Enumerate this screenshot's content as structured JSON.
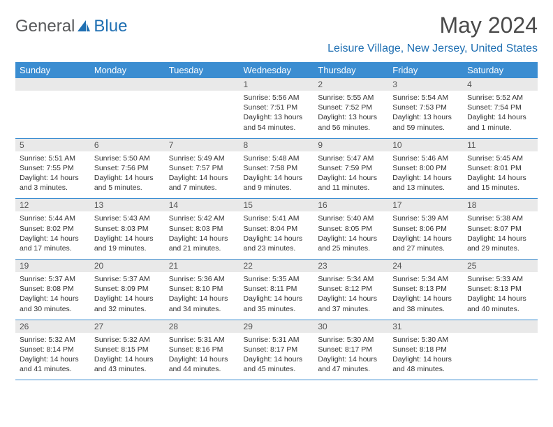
{
  "brand": {
    "text_gray": "General",
    "text_blue": "Blue",
    "color_gray": "#58595b",
    "color_blue": "#1f6fb2"
  },
  "title": "May 2024",
  "location": "Leisure Village, New Jersey, United States",
  "colors": {
    "header_bg": "#3b8dd1",
    "header_text": "#ffffff",
    "daynum_bg": "#e9e9e9",
    "border": "#3b8dd1"
  },
  "weekdays": [
    "Sunday",
    "Monday",
    "Tuesday",
    "Wednesday",
    "Thursday",
    "Friday",
    "Saturday"
  ],
  "weeks": [
    [
      {
        "n": "",
        "sr": "",
        "ss": "",
        "dl": ""
      },
      {
        "n": "",
        "sr": "",
        "ss": "",
        "dl": ""
      },
      {
        "n": "",
        "sr": "",
        "ss": "",
        "dl": ""
      },
      {
        "n": "1",
        "sr": "Sunrise: 5:56 AM",
        "ss": "Sunset: 7:51 PM",
        "dl": "Daylight: 13 hours and 54 minutes."
      },
      {
        "n": "2",
        "sr": "Sunrise: 5:55 AM",
        "ss": "Sunset: 7:52 PM",
        "dl": "Daylight: 13 hours and 56 minutes."
      },
      {
        "n": "3",
        "sr": "Sunrise: 5:54 AM",
        "ss": "Sunset: 7:53 PM",
        "dl": "Daylight: 13 hours and 59 minutes."
      },
      {
        "n": "4",
        "sr": "Sunrise: 5:52 AM",
        "ss": "Sunset: 7:54 PM",
        "dl": "Daylight: 14 hours and 1 minute."
      }
    ],
    [
      {
        "n": "5",
        "sr": "Sunrise: 5:51 AM",
        "ss": "Sunset: 7:55 PM",
        "dl": "Daylight: 14 hours and 3 minutes."
      },
      {
        "n": "6",
        "sr": "Sunrise: 5:50 AM",
        "ss": "Sunset: 7:56 PM",
        "dl": "Daylight: 14 hours and 5 minutes."
      },
      {
        "n": "7",
        "sr": "Sunrise: 5:49 AM",
        "ss": "Sunset: 7:57 PM",
        "dl": "Daylight: 14 hours and 7 minutes."
      },
      {
        "n": "8",
        "sr": "Sunrise: 5:48 AM",
        "ss": "Sunset: 7:58 PM",
        "dl": "Daylight: 14 hours and 9 minutes."
      },
      {
        "n": "9",
        "sr": "Sunrise: 5:47 AM",
        "ss": "Sunset: 7:59 PM",
        "dl": "Daylight: 14 hours and 11 minutes."
      },
      {
        "n": "10",
        "sr": "Sunrise: 5:46 AM",
        "ss": "Sunset: 8:00 PM",
        "dl": "Daylight: 14 hours and 13 minutes."
      },
      {
        "n": "11",
        "sr": "Sunrise: 5:45 AM",
        "ss": "Sunset: 8:01 PM",
        "dl": "Daylight: 14 hours and 15 minutes."
      }
    ],
    [
      {
        "n": "12",
        "sr": "Sunrise: 5:44 AM",
        "ss": "Sunset: 8:02 PM",
        "dl": "Daylight: 14 hours and 17 minutes."
      },
      {
        "n": "13",
        "sr": "Sunrise: 5:43 AM",
        "ss": "Sunset: 8:03 PM",
        "dl": "Daylight: 14 hours and 19 minutes."
      },
      {
        "n": "14",
        "sr": "Sunrise: 5:42 AM",
        "ss": "Sunset: 8:03 PM",
        "dl": "Daylight: 14 hours and 21 minutes."
      },
      {
        "n": "15",
        "sr": "Sunrise: 5:41 AM",
        "ss": "Sunset: 8:04 PM",
        "dl": "Daylight: 14 hours and 23 minutes."
      },
      {
        "n": "16",
        "sr": "Sunrise: 5:40 AM",
        "ss": "Sunset: 8:05 PM",
        "dl": "Daylight: 14 hours and 25 minutes."
      },
      {
        "n": "17",
        "sr": "Sunrise: 5:39 AM",
        "ss": "Sunset: 8:06 PM",
        "dl": "Daylight: 14 hours and 27 minutes."
      },
      {
        "n": "18",
        "sr": "Sunrise: 5:38 AM",
        "ss": "Sunset: 8:07 PM",
        "dl": "Daylight: 14 hours and 29 minutes."
      }
    ],
    [
      {
        "n": "19",
        "sr": "Sunrise: 5:37 AM",
        "ss": "Sunset: 8:08 PM",
        "dl": "Daylight: 14 hours and 30 minutes."
      },
      {
        "n": "20",
        "sr": "Sunrise: 5:37 AM",
        "ss": "Sunset: 8:09 PM",
        "dl": "Daylight: 14 hours and 32 minutes."
      },
      {
        "n": "21",
        "sr": "Sunrise: 5:36 AM",
        "ss": "Sunset: 8:10 PM",
        "dl": "Daylight: 14 hours and 34 minutes."
      },
      {
        "n": "22",
        "sr": "Sunrise: 5:35 AM",
        "ss": "Sunset: 8:11 PM",
        "dl": "Daylight: 14 hours and 35 minutes."
      },
      {
        "n": "23",
        "sr": "Sunrise: 5:34 AM",
        "ss": "Sunset: 8:12 PM",
        "dl": "Daylight: 14 hours and 37 minutes."
      },
      {
        "n": "24",
        "sr": "Sunrise: 5:34 AM",
        "ss": "Sunset: 8:13 PM",
        "dl": "Daylight: 14 hours and 38 minutes."
      },
      {
        "n": "25",
        "sr": "Sunrise: 5:33 AM",
        "ss": "Sunset: 8:13 PM",
        "dl": "Daylight: 14 hours and 40 minutes."
      }
    ],
    [
      {
        "n": "26",
        "sr": "Sunrise: 5:32 AM",
        "ss": "Sunset: 8:14 PM",
        "dl": "Daylight: 14 hours and 41 minutes."
      },
      {
        "n": "27",
        "sr": "Sunrise: 5:32 AM",
        "ss": "Sunset: 8:15 PM",
        "dl": "Daylight: 14 hours and 43 minutes."
      },
      {
        "n": "28",
        "sr": "Sunrise: 5:31 AM",
        "ss": "Sunset: 8:16 PM",
        "dl": "Daylight: 14 hours and 44 minutes."
      },
      {
        "n": "29",
        "sr": "Sunrise: 5:31 AM",
        "ss": "Sunset: 8:17 PM",
        "dl": "Daylight: 14 hours and 45 minutes."
      },
      {
        "n": "30",
        "sr": "Sunrise: 5:30 AM",
        "ss": "Sunset: 8:17 PM",
        "dl": "Daylight: 14 hours and 47 minutes."
      },
      {
        "n": "31",
        "sr": "Sunrise: 5:30 AM",
        "ss": "Sunset: 8:18 PM",
        "dl": "Daylight: 14 hours and 48 minutes."
      },
      {
        "n": "",
        "sr": "",
        "ss": "",
        "dl": ""
      }
    ]
  ]
}
